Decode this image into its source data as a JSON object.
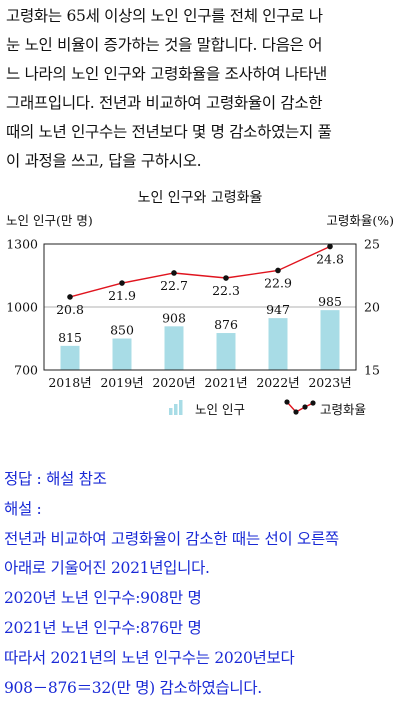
{
  "problem": {
    "lines": [
      "고령화는 65세 이상의 노인 인구를 전체 인구로 나",
      "눈 노인 비율이 증가하는 것을 말합니다. 다음은 어",
      "느 나라의 노인 인구와 고령화율을 조사하여 나타낸",
      "그래프입니다. 전년과 비교하여 고령화율이 감소한",
      "때의 노년 인구수는 전년보다 몇 명 감소하였는지 풀",
      "이 과정을 쓰고, 답을 구하시오."
    ]
  },
  "chart_data": {
    "type": "bar",
    "title": "노인 인구와 고령화율",
    "categories": [
      "2018년",
      "2019년",
      "2020년",
      "2021년",
      "2022년",
      "2023년"
    ],
    "ylabel_left": "노인 인구(만 명)",
    "ylabel_right": "고령화율(%)",
    "ylim_left": [
      700,
      1300
    ],
    "ylim_right": [
      15,
      25
    ],
    "yticks_left": [
      "700",
      "1000",
      "1300"
    ],
    "yticks_right": [
      "15",
      "20",
      "25"
    ],
    "series": [
      {
        "name": "노인 인구",
        "type": "bar",
        "axis": "left",
        "values": [
          815,
          850,
          908,
          876,
          947,
          985
        ],
        "labels": [
          "815",
          "850",
          "908",
          "876",
          "947",
          "985"
        ]
      },
      {
        "name": "고령화율",
        "type": "line",
        "axis": "right",
        "values": [
          20.8,
          21.9,
          22.7,
          22.3,
          22.9,
          24.8
        ],
        "labels": [
          "20.8",
          "21.9",
          "22.7",
          "22.3",
          "22.9",
          "24.8"
        ]
      }
    ],
    "colors": {
      "bar": "#a8dce6",
      "line": "#e0141e",
      "marker": "#111111",
      "axis": "#222222",
      "grid": "#999999"
    },
    "legend_position": "bottom"
  },
  "answer": {
    "lines": [
      "정답 : 해설 참조",
      "해설 :",
      "전년과 비교하여 고령화율이 감소한 때는 선이 오른쪽",
      "아래로 기울어진 2021년입니다.",
      "2020년 노년 인구수:908만 명",
      "2021년 노년 인구수:876만 명",
      "따라서 2021년의 노년 인구수는 2020년보다",
      "908－876＝32(만 명) 감소하였습니다."
    ]
  }
}
